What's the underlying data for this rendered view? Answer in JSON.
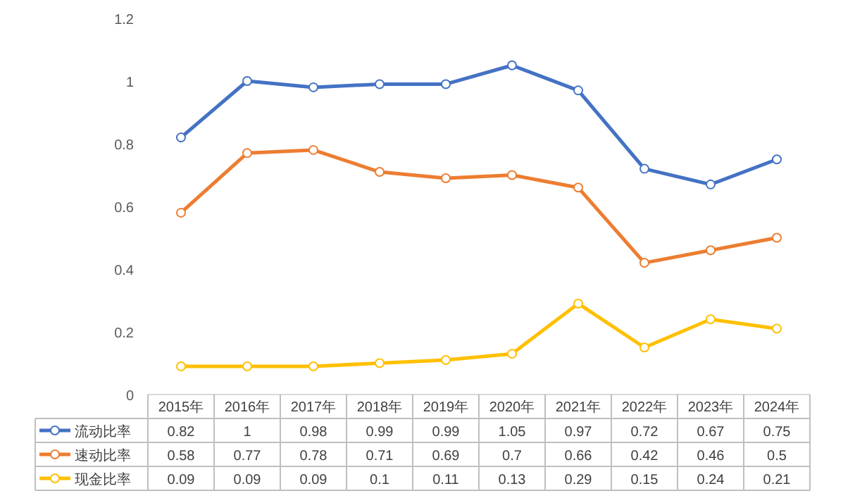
{
  "chart_data": {
    "type": "line",
    "categories": [
      "2015年",
      "2016年",
      "2017年",
      "2018年",
      "2019年",
      "2020年",
      "2021年",
      "2022年",
      "2023年",
      "2024年"
    ],
    "series": [
      {
        "name": "流动比率",
        "color": "#4472c4",
        "values": [
          0.82,
          1,
          0.98,
          0.99,
          0.99,
          1.05,
          0.97,
          0.72,
          0.67,
          0.75
        ]
      },
      {
        "name": "速动比率",
        "color": "#ed7d31",
        "values": [
          0.58,
          0.77,
          0.78,
          0.71,
          0.69,
          0.7,
          0.66,
          0.42,
          0.46,
          0.5
        ]
      },
      {
        "name": "现金比率",
        "color": "#ffc000",
        "values": [
          0.09,
          0.09,
          0.09,
          0.1,
          0.11,
          0.13,
          0.29,
          0.15,
          0.24,
          0.21
        ]
      }
    ],
    "ylim": [
      0,
      1.2
    ],
    "yticks": [
      0,
      0.2,
      0.4,
      0.6,
      0.8,
      1,
      1.2
    ],
    "data_labels": true,
    "marker": "circle",
    "legend": "bottom"
  }
}
